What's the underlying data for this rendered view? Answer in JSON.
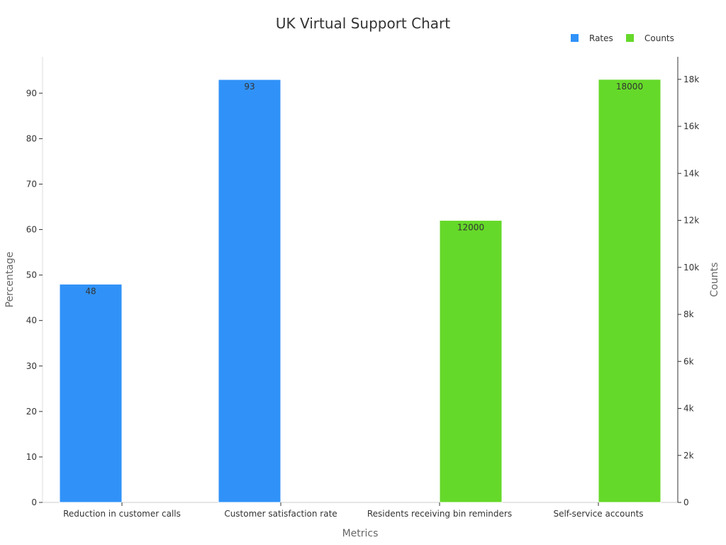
{
  "chart_data": {
    "type": "bar",
    "title": "UK Virtual Support Chart",
    "xlabel": "Metrics",
    "ylabel_left": "Percentage",
    "ylabel_right": "Counts",
    "categories": [
      "Reduction in customer calls",
      "Customer satisfaction rate",
      "Residents receiving bin reminders",
      "Self-service accounts"
    ],
    "series": [
      {
        "name": "Rates",
        "axis": "left",
        "color": "#3092f8",
        "values": [
          48,
          93,
          null,
          null
        ],
        "labels": [
          "48",
          "93",
          "",
          ""
        ]
      },
      {
        "name": "Counts",
        "axis": "right",
        "color": "#65d929",
        "values": [
          null,
          null,
          12000,
          18000
        ],
        "labels": [
          "",
          "",
          "12000",
          "18000"
        ]
      }
    ],
    "left_axis": {
      "range": [
        0,
        98
      ],
      "ticks": [
        0,
        10,
        20,
        30,
        40,
        50,
        60,
        70,
        80,
        90
      ],
      "tick_labels": [
        "0",
        "10",
        "20",
        "30",
        "40",
        "50",
        "60",
        "70",
        "80",
        "90"
      ]
    },
    "right_axis": {
      "range": [
        0,
        18960
      ],
      "ticks": [
        0,
        2000,
        4000,
        6000,
        8000,
        10000,
        12000,
        14000,
        16000,
        18000
      ],
      "tick_labels": [
        "0",
        "2k",
        "4k",
        "6k",
        "8k",
        "10k",
        "12k",
        "14k",
        "16k",
        "18k"
      ]
    },
    "legend": {
      "position": "top-right",
      "entries": [
        "Rates",
        "Counts"
      ]
    },
    "grid": false
  }
}
